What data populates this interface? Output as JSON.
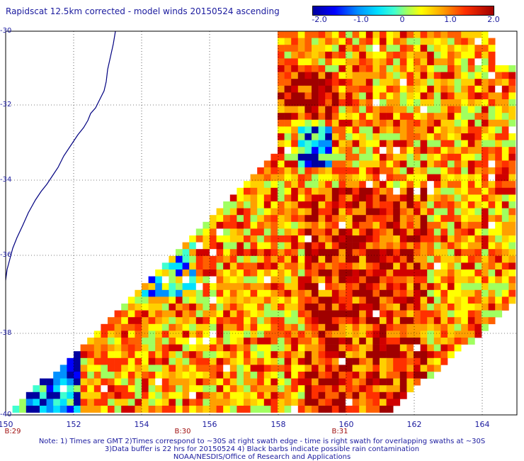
{
  "title": "Rapidscat 12.5km corrected - model winds 20150524 ascending",
  "colorbar": {
    "ticks": [
      "-2.0",
      "-1.0",
      "0",
      "1.0",
      "2.0"
    ],
    "range": [
      -2.0,
      2.0
    ],
    "colors": [
      "#0000a0",
      "#0000ff",
      "#0090ff",
      "#00e0ff",
      "#a0ff60",
      "#ffff00",
      "#ffa000",
      "#ff3000",
      "#a00000"
    ]
  },
  "map": {
    "lat_labels": [
      "-30",
      "-32",
      "-34",
      "-36",
      "-38",
      "-40"
    ],
    "lon_labels": [
      "150",
      "152",
      "154",
      "156",
      "158",
      "160",
      "162",
      "164"
    ],
    "lat_range": [
      -30,
      -40
    ],
    "lon_range": [
      150,
      165
    ],
    "pass_labels": [
      "B:29",
      "B:30",
      "B:31"
    ],
    "coastline_color": "#000080",
    "grid_color": "#000000"
  },
  "notes": [
    "Note: 1) Times are GMT 2)Times correspond to ~30S at right swath edge - time is right swath for overlapping swaths at ~30S",
    "3)Data buffer is 22 hrs for 20150524 4) Black barbs indicate possible rain contamination",
    "NOAA/NESDIS/Office of Research and Applications"
  ]
}
